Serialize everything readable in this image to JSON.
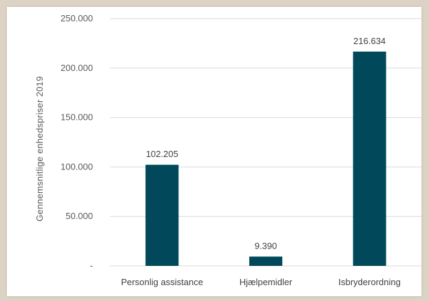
{
  "chart_data": {
    "type": "bar",
    "title": "",
    "xlabel": "",
    "ylabel": "Gennemsnitlige  enhedspriser  2019",
    "categories": [
      "Personlig assistance",
      "Hjælpemidler",
      "Isbryderordning"
    ],
    "values": [
      102205,
      9390,
      216634
    ],
    "value_labels": [
      "102.205",
      "9.390",
      "216.634"
    ],
    "yticks": [
      0,
      50000,
      100000,
      150000,
      200000,
      250000
    ],
    "ytick_labels": [
      "-",
      "50.000",
      "100.000",
      "150.000",
      "200.000",
      "250.000"
    ],
    "ylim": [
      0,
      250000
    ],
    "grid": true,
    "legend": "none",
    "bar_color": "#00485a"
  }
}
